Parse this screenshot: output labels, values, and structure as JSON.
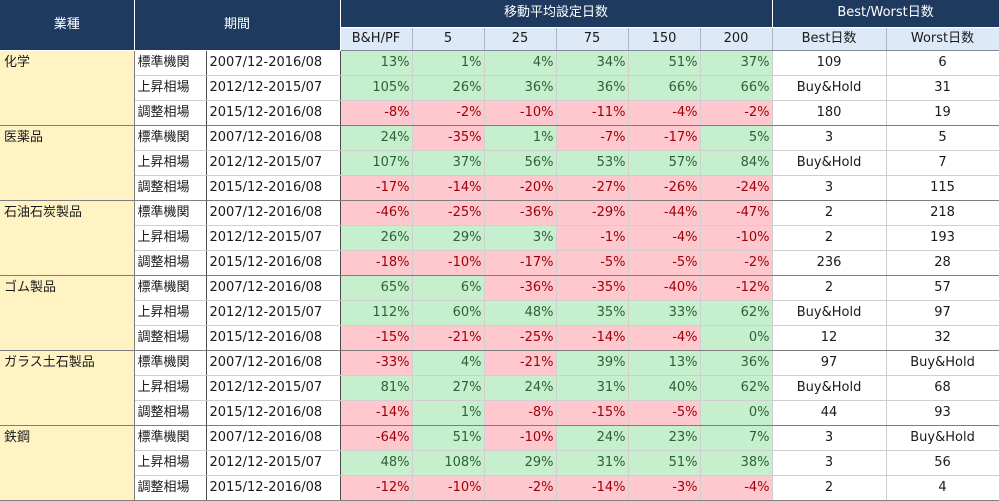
{
  "header": {
    "sector": "業種",
    "period": "期間",
    "ma_group": "移動平均設定日数",
    "bw_group": "Best/Worst日数",
    "ma_columns": [
      "B&H/PF",
      "5",
      "25",
      "75",
      "150",
      "200"
    ],
    "bw_columns": [
      "Best日数",
      "Worst日数"
    ]
  },
  "sectors": [
    {
      "name": "化学",
      "rows": [
        {
          "type": "標準機関",
          "period": "2007/12-2016/08",
          "values": [
            "13%",
            "1%",
            "4%",
            "34%",
            "51%",
            "37%"
          ],
          "best": "109",
          "worst": "6"
        },
        {
          "type": "上昇相場",
          "period": "2012/12-2015/07",
          "values": [
            "105%",
            "26%",
            "36%",
            "36%",
            "66%",
            "66%"
          ],
          "best": "Buy&Hold",
          "worst": "31"
        },
        {
          "type": "調整相場",
          "period": "2015/12-2016/08",
          "values": [
            "-8%",
            "-2%",
            "-10%",
            "-11%",
            "-4%",
            "-2%"
          ],
          "best": "180",
          "worst": "19"
        }
      ]
    },
    {
      "name": "医薬品",
      "rows": [
        {
          "type": "標準機関",
          "period": "2007/12-2016/08",
          "values": [
            "24%",
            "-35%",
            "1%",
            "-7%",
            "-17%",
            "5%"
          ],
          "best": "3",
          "worst": "5"
        },
        {
          "type": "上昇相場",
          "period": "2012/12-2015/07",
          "values": [
            "107%",
            "37%",
            "56%",
            "53%",
            "57%",
            "84%"
          ],
          "best": "Buy&Hold",
          "worst": "7"
        },
        {
          "type": "調整相場",
          "period": "2015/12-2016/08",
          "values": [
            "-17%",
            "-14%",
            "-20%",
            "-27%",
            "-26%",
            "-24%"
          ],
          "best": "3",
          "worst": "115"
        }
      ]
    },
    {
      "name": "石油石炭製品",
      "rows": [
        {
          "type": "標準機関",
          "period": "2007/12-2016/08",
          "values": [
            "-46%",
            "-25%",
            "-36%",
            "-29%",
            "-44%",
            "-47%"
          ],
          "best": "2",
          "worst": "218"
        },
        {
          "type": "上昇相場",
          "period": "2012/12-2015/07",
          "values": [
            "26%",
            "29%",
            "3%",
            "-1%",
            "-4%",
            "-10%"
          ],
          "best": "2",
          "worst": "193"
        },
        {
          "type": "調整相場",
          "period": "2015/12-2016/08",
          "values": [
            "-18%",
            "-10%",
            "-17%",
            "-5%",
            "-5%",
            "-2%"
          ],
          "best": "236",
          "worst": "28"
        }
      ]
    },
    {
      "name": "ゴム製品",
      "rows": [
        {
          "type": "標準機関",
          "period": "2007/12-2016/08",
          "values": [
            "65%",
            "6%",
            "-36%",
            "-35%",
            "-40%",
            "-12%"
          ],
          "best": "2",
          "worst": "57"
        },
        {
          "type": "上昇相場",
          "period": "2012/12-2015/07",
          "values": [
            "112%",
            "60%",
            "48%",
            "35%",
            "33%",
            "62%"
          ],
          "best": "Buy&Hold",
          "worst": "97"
        },
        {
          "type": "調整相場",
          "period": "2015/12-2016/08",
          "values": [
            "-15%",
            "-21%",
            "-25%",
            "-14%",
            "-4%",
            "0%"
          ],
          "best": "12",
          "worst": "32"
        }
      ]
    },
    {
      "name": "ガラス土石製品",
      "rows": [
        {
          "type": "標準機関",
          "period": "2007/12-2016/08",
          "values": [
            "-33%",
            "4%",
            "-21%",
            "39%",
            "13%",
            "36%"
          ],
          "best": "97",
          "worst": "Buy&Hold"
        },
        {
          "type": "上昇相場",
          "period": "2012/12-2015/07",
          "values": [
            "81%",
            "27%",
            "24%",
            "31%",
            "40%",
            "62%"
          ],
          "best": "Buy&Hold",
          "worst": "68"
        },
        {
          "type": "調整相場",
          "period": "2015/12-2016/08",
          "values": [
            "-14%",
            "1%",
            "-8%",
            "-15%",
            "-5%",
            "0%"
          ],
          "best": "44",
          "worst": "93"
        }
      ]
    },
    {
      "name": "鉄鋼",
      "rows": [
        {
          "type": "標準機関",
          "period": "2007/12-2016/08",
          "values": [
            "-64%",
            "51%",
            "-10%",
            "24%",
            "23%",
            "7%"
          ],
          "best": "3",
          "worst": "Buy&Hold"
        },
        {
          "type": "上昇相場",
          "period": "2012/12-2015/07",
          "values": [
            "48%",
            "108%",
            "29%",
            "31%",
            "51%",
            "38%"
          ],
          "best": "3",
          "worst": "56"
        },
        {
          "type": "調整相場",
          "period": "2015/12-2016/08",
          "values": [
            "-12%",
            "-10%",
            "-2%",
            "-14%",
            "-3%",
            "-4%"
          ],
          "best": "2",
          "worst": "4"
        }
      ]
    }
  ],
  "colors": {
    "header_bg": "#1f3a5f",
    "subheader_bg": "#dde9f7",
    "sector_bg": "#fff3c4",
    "positive_bg": "#c6efce",
    "negative_bg": "#ffc7ce"
  }
}
